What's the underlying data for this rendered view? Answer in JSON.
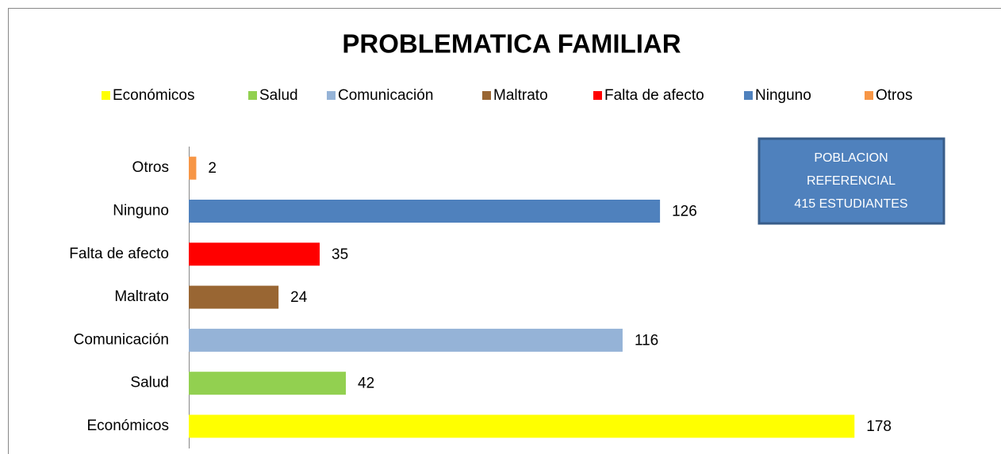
{
  "chart_data": {
    "type": "hbar",
    "title": "PROBLEMATICA FAMILIAR",
    "categories": [
      "Económicos",
      "Salud",
      "Comunicación",
      "Maltrato",
      "Falta de afecto",
      "Ninguno",
      "Otros"
    ],
    "values": [
      178,
      42,
      116,
      24,
      35,
      126,
      2
    ],
    "colors": [
      "#ffff00",
      "#92d050",
      "#95b3d7",
      "#996633",
      "#ff0000",
      "#4f81bd",
      "#f79646"
    ],
    "xlim": [
      0,
      200
    ],
    "legend": "top",
    "annotation": [
      "POBLACION",
      "REFERENCIAL",
      "415 ESTUDIANTES"
    ]
  }
}
